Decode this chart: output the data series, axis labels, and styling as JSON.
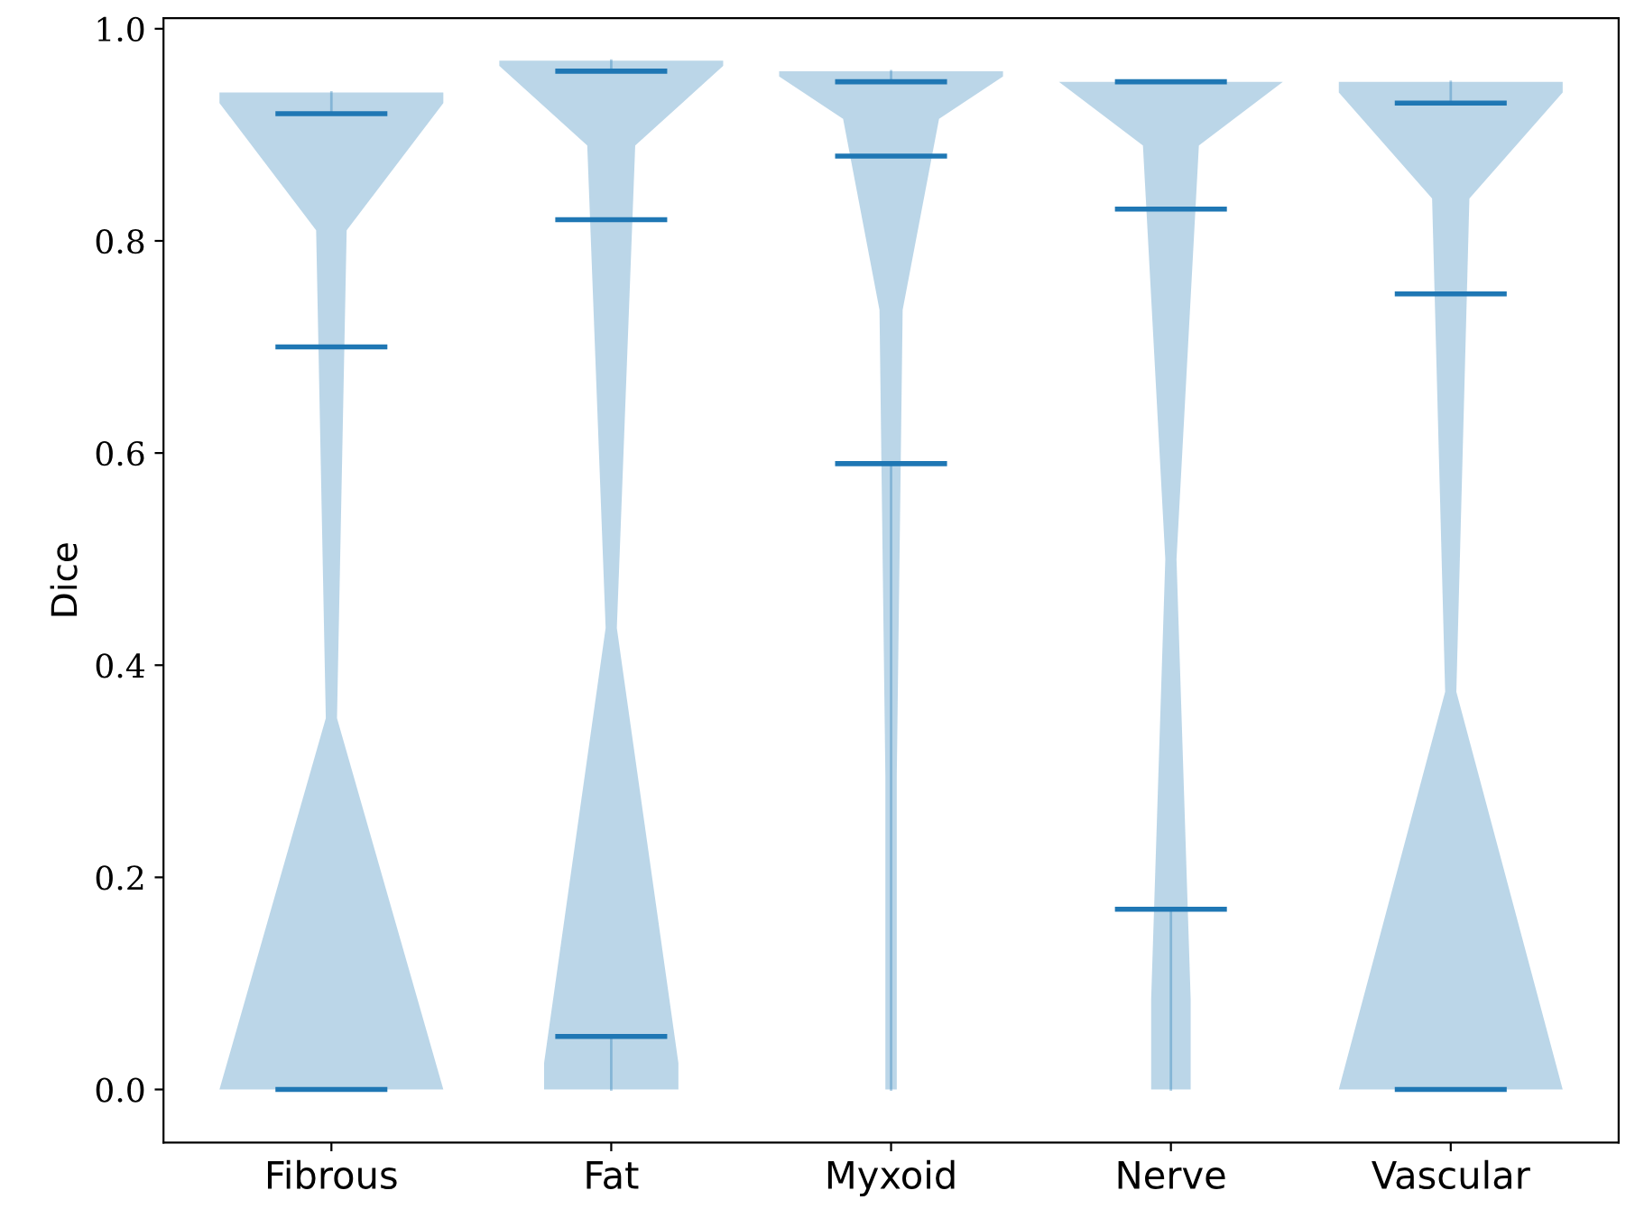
{
  "chart_data": {
    "type": "box",
    "ylabel": "Dice",
    "categories": [
      "Fibrous",
      "Fat",
      "Myxoid",
      "Nerve",
      "Vascular"
    ],
    "series": [
      {
        "color": "#1f77b4",
        "boxes": [
          {
            "low": 0,
            "q1": 0,
            "median": 0.7,
            "q3": 0.92,
            "high": 0.94
          },
          {
            "low": 0,
            "q1": 0.05,
            "median": 0.82,
            "q3": 0.96,
            "high": 0.97
          },
          {
            "low": 0,
            "q1": 0.59,
            "median": 0.88,
            "q3": 0.95,
            "high": 0.96
          },
          {
            "low": 0,
            "q1": 0.17,
            "median": 0.83,
            "q3": 0.95,
            "high": 0.95
          },
          {
            "low": 0,
            "q1": 0,
            "median": 0.75,
            "q3": 0.93,
            "high": 0.95
          }
        ]
      }
    ],
    "ylim": [
      -0.05,
      1.01
    ],
    "yticks": [
      {
        "value": 0,
        "label": "0.0"
      },
      {
        "value": 0.2,
        "label": "0.2"
      },
      {
        "value": 0.4,
        "label": "0.4"
      },
      {
        "value": 0.6,
        "label": "0.6"
      },
      {
        "value": 0.8,
        "label": "0.8"
      },
      {
        "value": 1,
        "label": "1.0"
      }
    ],
    "grid": false,
    "legend": false
  }
}
